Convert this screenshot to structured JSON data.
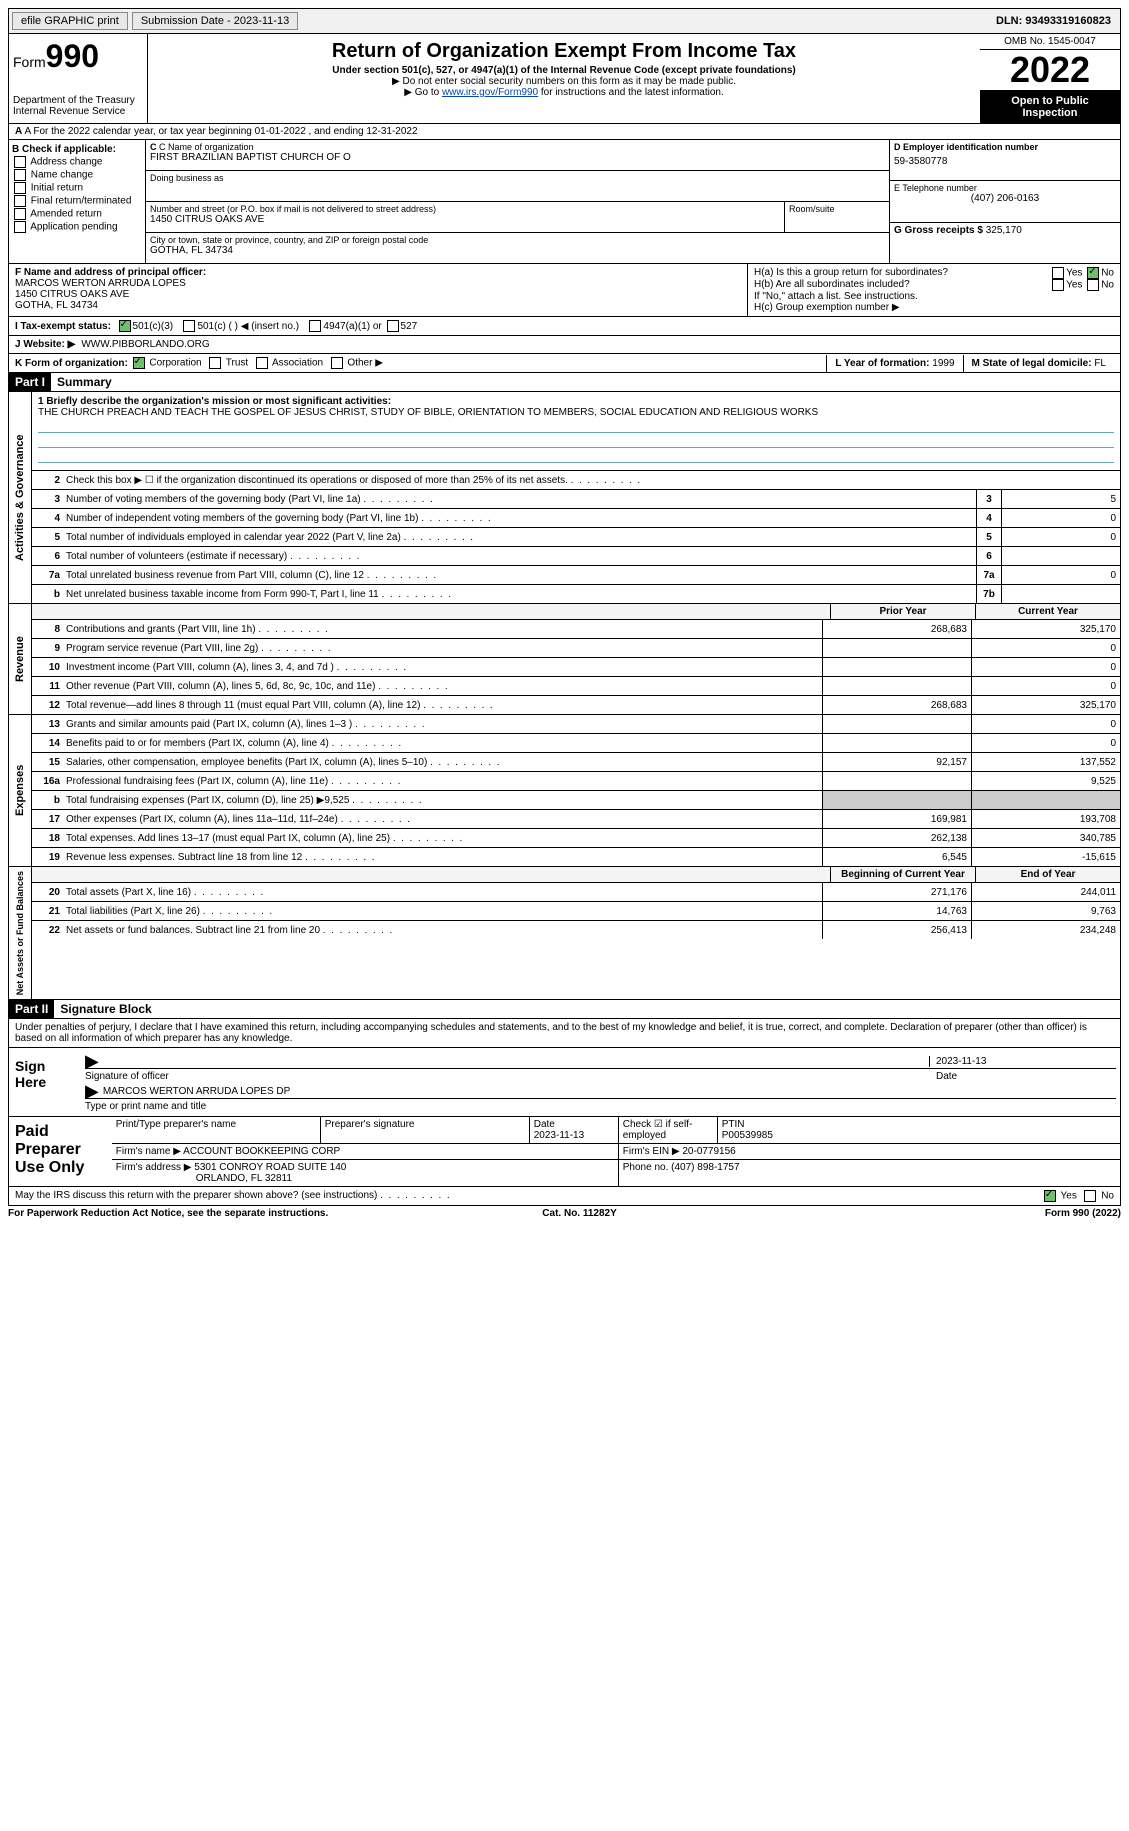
{
  "topbar": {
    "efile": "efile GRAPHIC print",
    "submission": "Submission Date - 2023-11-13",
    "dln": "DLN: 93493319160823"
  },
  "header": {
    "form_label": "Form",
    "form_num": "990",
    "dept": "Department of the Treasury",
    "irs": "Internal Revenue Service",
    "title": "Return of Organization Exempt From Income Tax",
    "sub": "Under section 501(c), 527, or 4947(a)(1) of the Internal Revenue Code (except private foundations)",
    "note1": "▶ Do not enter social security numbers on this form as it may be made public.",
    "note2_a": "▶ Go to ",
    "note2_link": "www.irs.gov/Form990",
    "note2_b": " for instructions and the latest information.",
    "omb": "OMB No. 1545-0047",
    "year": "2022",
    "inspect": "Open to Public Inspection"
  },
  "rowA": "A For the 2022 calendar year, or tax year beginning 01-01-2022   , and ending 12-31-2022",
  "colB": {
    "title": "B Check if applicable:",
    "items": [
      "Address change",
      "Name change",
      "Initial return",
      "Final return/terminated",
      "Amended return",
      "Application pending"
    ]
  },
  "colC": {
    "name_lbl": "C Name of organization",
    "name": "FIRST BRAZILIAN BAPTIST CHURCH OF O",
    "dba_lbl": "Doing business as",
    "addr_lbl": "Number and street (or P.O. box if mail is not delivered to street address)",
    "room_lbl": "Room/suite",
    "addr": "1450 CITRUS OAKS AVE",
    "city_lbl": "City or town, state or province, country, and ZIP or foreign postal code",
    "city": "GOTHA, FL  34734"
  },
  "colD": {
    "ein_lbl": "D Employer identification number",
    "ein": "59-3580778",
    "tel_lbl": "E Telephone number",
    "tel": "(407) 206-0163",
    "gross_lbl": "G Gross receipts $",
    "gross": "325,170"
  },
  "rowF": {
    "lbl": "F Name and address of principal officer:",
    "name": "MARCOS WERTON ARRUDA LOPES",
    "addr1": "1450 CITRUS OAKS AVE",
    "addr2": "GOTHA, FL  34734"
  },
  "rowH": {
    "ha": "H(a)  Is this a group return for subordinates?",
    "hb": "H(b)  Are all subordinates included?",
    "hb_note": "If \"No,\" attach a list. See instructions.",
    "hc": "H(c)  Group exemption number ▶",
    "yes": "Yes",
    "no": "No"
  },
  "rowI": {
    "lbl": "I   Tax-exempt status:",
    "o1": "501(c)(3)",
    "o2": "501(c) (  ) ◀ (insert no.)",
    "o3": "4947(a)(1) or",
    "o4": "527"
  },
  "rowJ": {
    "lbl": "J   Website: ▶",
    "val": "WWW.PIBBORLANDO.ORG"
  },
  "rowK": {
    "lbl": "K Form of organization:",
    "opts": [
      "Corporation",
      "Trust",
      "Association",
      "Other ▶"
    ],
    "l_lbl": "L Year of formation:",
    "l_val": "1999",
    "m_lbl": "M State of legal domicile:",
    "m_val": "FL"
  },
  "part1": {
    "hdr": "Part I",
    "title": "Summary"
  },
  "mission": {
    "lbl": "1   Briefly describe the organization's mission or most significant activities:",
    "text": "THE CHURCH PREACH AND TEACH THE GOSPEL OF JESUS CHRIST, STUDY OF BIBLE, ORIENTATION TO MEMBERS, SOCIAL EDUCATION AND RELIGIOUS WORKS"
  },
  "vtabs": {
    "ag": "Activities & Governance",
    "rev": "Revenue",
    "exp": "Expenses",
    "net": "Net Assets or Fund Balances"
  },
  "lines_ag": [
    {
      "n": "2",
      "d": "Check this box ▶ ☐  if the organization discontinued its operations or disposed of more than 25% of its net assets."
    },
    {
      "n": "3",
      "d": "Number of voting members of the governing body (Part VI, line 1a)",
      "box": "3",
      "v": "5"
    },
    {
      "n": "4",
      "d": "Number of independent voting members of the governing body (Part VI, line 1b)",
      "box": "4",
      "v": "0"
    },
    {
      "n": "5",
      "d": "Total number of individuals employed in calendar year 2022 (Part V, line 2a)",
      "box": "5",
      "v": "0"
    },
    {
      "n": "6",
      "d": "Total number of volunteers (estimate if necessary)",
      "box": "6",
      "v": ""
    },
    {
      "n": "7a",
      "d": "Total unrelated business revenue from Part VIII, column (C), line 12",
      "box": "7a",
      "v": "0"
    },
    {
      "n": "b",
      "d": "Net unrelated business taxable income from Form 990-T, Part I, line 11",
      "box": "7b",
      "v": ""
    }
  ],
  "twocol_hdr": {
    "c1": "Prior Year",
    "c2": "Current Year"
  },
  "lines_rev": [
    {
      "n": "8",
      "d": "Contributions and grants (Part VIII, line 1h)",
      "c1": "268,683",
      "c2": "325,170"
    },
    {
      "n": "9",
      "d": "Program service revenue (Part VIII, line 2g)",
      "c1": "",
      "c2": "0"
    },
    {
      "n": "10",
      "d": "Investment income (Part VIII, column (A), lines 3, 4, and 7d )",
      "c1": "",
      "c2": "0"
    },
    {
      "n": "11",
      "d": "Other revenue (Part VIII, column (A), lines 5, 6d, 8c, 9c, 10c, and 11e)",
      "c1": "",
      "c2": "0"
    },
    {
      "n": "12",
      "d": "Total revenue—add lines 8 through 11 (must equal Part VIII, column (A), line 12)",
      "c1": "268,683",
      "c2": "325,170"
    }
  ],
  "lines_exp": [
    {
      "n": "13",
      "d": "Grants and similar amounts paid (Part IX, column (A), lines 1–3 )",
      "c1": "",
      "c2": "0"
    },
    {
      "n": "14",
      "d": "Benefits paid to or for members (Part IX, column (A), line 4)",
      "c1": "",
      "c2": "0"
    },
    {
      "n": "15",
      "d": "Salaries, other compensation, employee benefits (Part IX, column (A), lines 5–10)",
      "c1": "92,157",
      "c2": "137,552"
    },
    {
      "n": "16a",
      "d": "Professional fundraising fees (Part IX, column (A), line 11e)",
      "c1": "",
      "c2": "9,525"
    },
    {
      "n": "b",
      "d": "Total fundraising expenses (Part IX, column (D), line 25) ▶9,525",
      "shade": true
    },
    {
      "n": "17",
      "d": "Other expenses (Part IX, column (A), lines 11a–11d, 11f–24e)",
      "c1": "169,981",
      "c2": "193,708"
    },
    {
      "n": "18",
      "d": "Total expenses. Add lines 13–17 (must equal Part IX, column (A), line 25)",
      "c1": "262,138",
      "c2": "340,785"
    },
    {
      "n": "19",
      "d": "Revenue less expenses. Subtract line 18 from line 12",
      "c1": "6,545",
      "c2": "-15,615"
    }
  ],
  "twocol_hdr2": {
    "c1": "Beginning of Current Year",
    "c2": "End of Year"
  },
  "lines_net": [
    {
      "n": "20",
      "d": "Total assets (Part X, line 16)",
      "c1": "271,176",
      "c2": "244,011"
    },
    {
      "n": "21",
      "d": "Total liabilities (Part X, line 26)",
      "c1": "14,763",
      "c2": "9,763"
    },
    {
      "n": "22",
      "d": "Net assets or fund balances. Subtract line 21 from line 20",
      "c1": "256,413",
      "c2": "234,248"
    }
  ],
  "part2": {
    "hdr": "Part II",
    "title": "Signature Block"
  },
  "sig_intro": "Under penalties of perjury, I declare that I have examined this return, including accompanying schedules and statements, and to the best of my knowledge and belief, it is true, correct, and complete. Declaration of preparer (other than officer) is based on all information of which preparer has any knowledge.",
  "sign": {
    "lab": "Sign Here",
    "sig_lbl": "Signature of officer",
    "date": "2023-11-13",
    "date_lbl": "Date",
    "name": "MARCOS WERTON ARRUDA LOPES  DP",
    "name_lbl": "Type or print name and title"
  },
  "paid": {
    "lab": "Paid Preparer Use Only",
    "h1": "Print/Type preparer's name",
    "h2": "Preparer's signature",
    "h3_lbl": "Date",
    "h3": "2023-11-13",
    "h4": "Check ☑ if self-employed",
    "h5_lbl": "PTIN",
    "h5": "P00539985",
    "firm_name_lbl": "Firm's name    ▶",
    "firm_name": "ACCOUNT BOOKKEEPING CORP",
    "firm_ein_lbl": "Firm's EIN ▶",
    "firm_ein": "20-0779156",
    "firm_addr_lbl": "Firm's address ▶",
    "firm_addr1": "5301 CONROY ROAD SUITE 140",
    "firm_addr2": "ORLANDO, FL  32811",
    "phone_lbl": "Phone no.",
    "phone": "(407) 898-1757"
  },
  "footer_q": "May the IRS discuss this return with the preparer shown above? (see instructions)",
  "bottom": {
    "l": "For Paperwork Reduction Act Notice, see the separate instructions.",
    "m": "Cat. No. 11282Y",
    "r": "Form 990 (2022)"
  }
}
